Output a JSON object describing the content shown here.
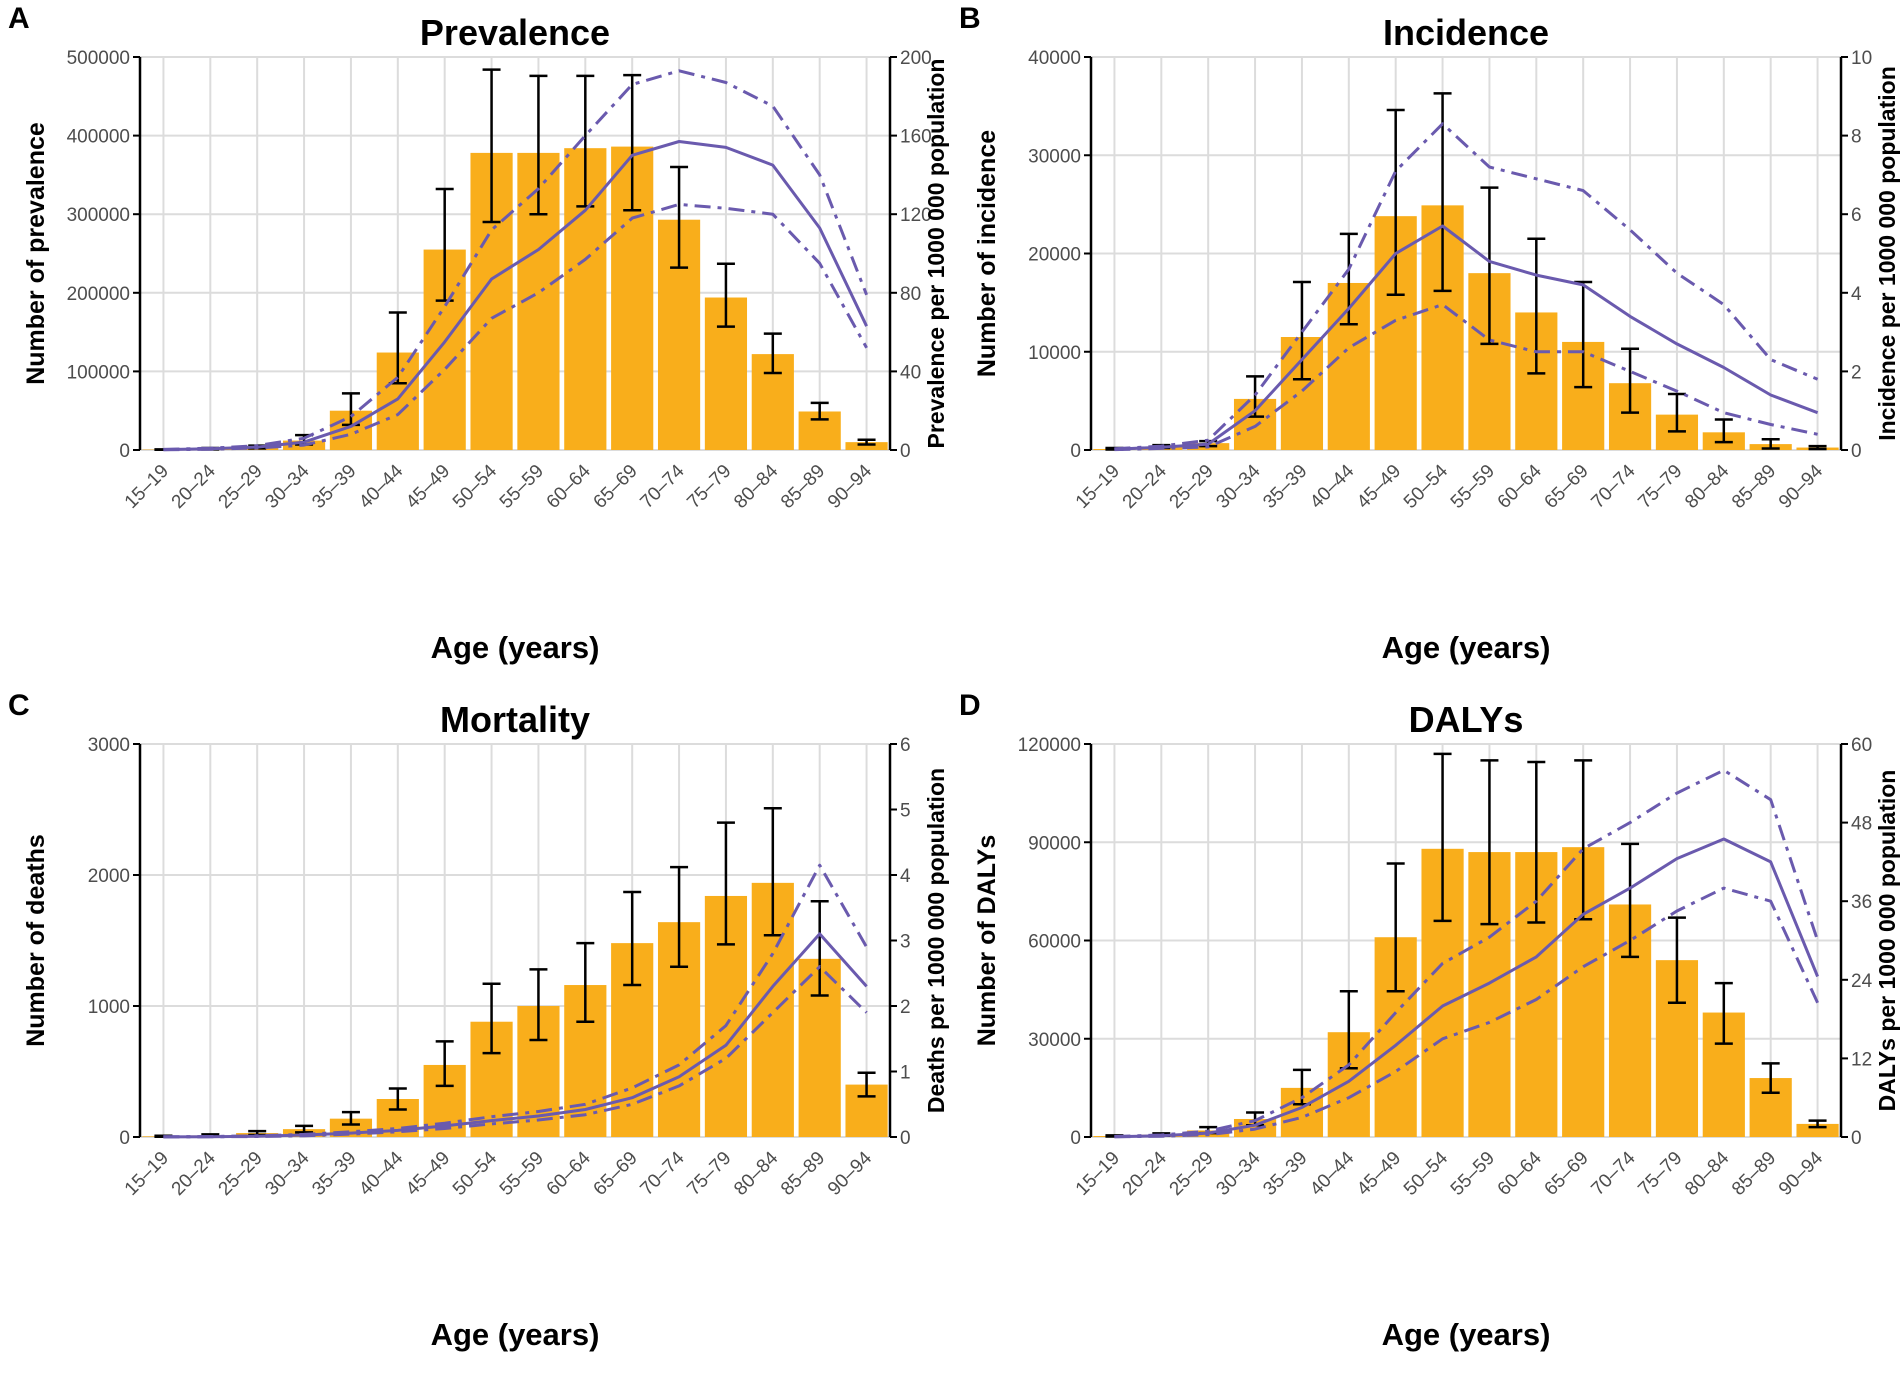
{
  "figure": {
    "colors": {
      "bar": "#F9AE1B",
      "line": "#6A5AAE",
      "grid": "#DCDCDC",
      "axis": "#000000",
      "tick_text": "#4D4D4D"
    },
    "legend_placement": "none"
  },
  "chart_data": [
    {
      "panel_letter": "A",
      "type": "bar",
      "title": "Prevalence",
      "xlabel": "Age (years)",
      "ylabel": "Number of prevalence",
      "y2label": "Prevalence per 1000 000 population",
      "categories": [
        "15–19",
        "20–24",
        "25–29",
        "30–34",
        "35–39",
        "40–44",
        "45–49",
        "50–54",
        "55–59",
        "60–64",
        "65–69",
        "70–74",
        "75–79",
        "80–84",
        "85–89",
        "90–94"
      ],
      "ylim": [
        0,
        500000
      ],
      "yticks": [
        0,
        100000,
        200000,
        300000,
        400000,
        500000
      ],
      "y2lim": [
        0,
        200
      ],
      "y2ticks": [
        0,
        40,
        80,
        120,
        160,
        200
      ],
      "series": [
        {
          "name": "Number of prevalence",
          "axis": "left",
          "kind": "bar",
          "values": [
            500,
            1500,
            3500,
            12000,
            50000,
            124000,
            255000,
            378000,
            378000,
            384000,
            386000,
            293000,
            194000,
            122000,
            49000,
            10000
          ],
          "lower": [
            300,
            800,
            2000,
            7000,
            32000,
            85000,
            190000,
            290000,
            300000,
            310000,
            305000,
            232000,
            157000,
            98000,
            39000,
            7000
          ],
          "upper": [
            800,
            2500,
            5500,
            19000,
            72000,
            175000,
            332000,
            484000,
            476000,
            476000,
            477000,
            360000,
            237000,
            148000,
            60000,
            13000
          ]
        },
        {
          "name": "Prevalence rate",
          "axis": "right",
          "kind": "line",
          "style": "solid",
          "values": [
            0.2,
            0.6,
            1.5,
            4,
            12,
            26,
            55,
            87,
            102,
            122,
            150,
            157,
            154,
            145,
            113,
            63
          ]
        },
        {
          "name": "Prevalence rate upper UI",
          "axis": "right",
          "kind": "line",
          "style": "dashdot",
          "values": [
            0.3,
            0.9,
            2.2,
            6,
            17,
            37,
            73,
            112,
            133,
            160,
            186,
            193,
            187,
            175,
            140,
            79
          ]
        },
        {
          "name": "Prevalence rate lower UI",
          "axis": "right",
          "kind": "line",
          "style": "dashdot",
          "values": [
            0.1,
            0.4,
            1.0,
            2.5,
            8,
            18,
            41,
            67,
            80,
            97,
            118,
            125,
            123,
            120,
            95,
            52
          ]
        }
      ]
    },
    {
      "panel_letter": "B",
      "type": "bar",
      "title": "Incidence",
      "xlabel": "Age (years)",
      "ylabel": "Number of incidence",
      "y2label": "Incidence per 1000 000 population",
      "categories": [
        "15–19",
        "20–24",
        "25–29",
        "30–34",
        "35–39",
        "40–44",
        "45–49",
        "50–54",
        "55–59",
        "60–64",
        "65–69",
        "70–74",
        "75–79",
        "80–84",
        "85–89",
        "90–94"
      ],
      "ylim": [
        0,
        40000
      ],
      "yticks": [
        0,
        10000,
        20000,
        30000,
        40000
      ],
      "y2lim": [
        0,
        10
      ],
      "y2ticks": [
        0,
        2,
        4,
        6,
        8,
        10
      ],
      "series": [
        {
          "name": "Number of incidence",
          "axis": "left",
          "kind": "bar",
          "values": [
            100,
            350,
            700,
            5200,
            11500,
            17000,
            23800,
            24900,
            18000,
            14000,
            11000,
            6800,
            3600,
            1800,
            600,
            250
          ],
          "lower": [
            50,
            200,
            400,
            3400,
            7200,
            12800,
            15800,
            16200,
            10800,
            7800,
            6400,
            3800,
            1900,
            800,
            150,
            100
          ],
          "upper": [
            200,
            500,
            900,
            7500,
            17100,
            22000,
            34600,
            36300,
            26700,
            21500,
            17100,
            10300,
            5700,
            3100,
            1100,
            400
          ]
        },
        {
          "name": "Incidence rate",
          "axis": "right",
          "kind": "line",
          "style": "solid",
          "values": [
            0.02,
            0.07,
            0.15,
            1.0,
            2.3,
            3.6,
            5.0,
            5.7,
            4.8,
            4.45,
            4.2,
            3.4,
            2.7,
            2.1,
            1.4,
            0.95
          ]
        },
        {
          "name": "Incidence rate upper UI",
          "axis": "right",
          "kind": "line",
          "style": "dashdot",
          "values": [
            0.03,
            0.1,
            0.25,
            1.4,
            3.0,
            4.6,
            7.1,
            8.3,
            7.2,
            6.9,
            6.6,
            5.6,
            4.5,
            3.7,
            2.3,
            1.8
          ]
        },
        {
          "name": "Incidence rate lower UI",
          "axis": "right",
          "kind": "line",
          "style": "dashdot",
          "values": [
            0.01,
            0.04,
            0.08,
            0.6,
            1.5,
            2.6,
            3.3,
            3.7,
            2.8,
            2.5,
            2.5,
            2.0,
            1.5,
            0.95,
            0.65,
            0.4
          ]
        }
      ]
    },
    {
      "panel_letter": "C",
      "type": "bar",
      "title": "Mortality",
      "xlabel": "Age (years)",
      "ylabel": "Number of deaths",
      "y2label": "Deaths per 1000 000 population",
      "categories": [
        "15–19",
        "20–24",
        "25–29",
        "30–34",
        "35–39",
        "40–44",
        "45–49",
        "50–54",
        "55–59",
        "60–64",
        "65–69",
        "70–74",
        "75–79",
        "80–84",
        "85–89",
        "90–94"
      ],
      "ylim": [
        0,
        3000
      ],
      "yticks": [
        0,
        1000,
        2000,
        3000
      ],
      "y2lim": [
        0,
        6
      ],
      "y2ticks": [
        0,
        1,
        2,
        3,
        4,
        5,
        6
      ],
      "series": [
        {
          "name": "Number of deaths",
          "axis": "left",
          "kind": "bar",
          "values": [
            5,
            12,
            30,
            60,
            140,
            290,
            550,
            880,
            1000,
            1160,
            1480,
            1640,
            1840,
            1940,
            1360,
            400
          ],
          "lower": [
            2,
            6,
            15,
            35,
            95,
            210,
            390,
            640,
            740,
            880,
            1160,
            1300,
            1470,
            1540,
            1080,
            310
          ],
          "upper": [
            10,
            20,
            45,
            85,
            190,
            370,
            730,
            1170,
            1280,
            1480,
            1870,
            2060,
            2400,
            2510,
            1800,
            490
          ]
        },
        {
          "name": "Death rate",
          "axis": "right",
          "kind": "line",
          "style": "solid",
          "values": [
            0.002,
            0.005,
            0.012,
            0.03,
            0.06,
            0.1,
            0.17,
            0.25,
            0.32,
            0.42,
            0.6,
            0.92,
            1.4,
            2.3,
            3.1,
            2.3
          ]
        },
        {
          "name": "Death rate upper UI",
          "axis": "right",
          "kind": "line",
          "style": "dashdot",
          "values": [
            0.003,
            0.008,
            0.018,
            0.04,
            0.08,
            0.13,
            0.21,
            0.31,
            0.39,
            0.5,
            0.75,
            1.1,
            1.7,
            2.8,
            4.15,
            2.9
          ]
        },
        {
          "name": "Death rate lower UI",
          "axis": "right",
          "kind": "line",
          "style": "dashdot",
          "values": [
            0.001,
            0.003,
            0.008,
            0.02,
            0.045,
            0.08,
            0.13,
            0.2,
            0.26,
            0.34,
            0.5,
            0.78,
            1.2,
            1.9,
            2.6,
            1.9
          ]
        }
      ]
    },
    {
      "panel_letter": "D",
      "type": "bar",
      "title": "DALYs",
      "xlabel": "Age (years)",
      "ylabel": "Number of DALYs",
      "y2label": "DALYs per 1000 000 population",
      "categories": [
        "15–19",
        "20–24",
        "25–29",
        "30–34",
        "35–39",
        "40–44",
        "45–49",
        "50–54",
        "55–59",
        "60–64",
        "65–69",
        "70–74",
        "75–79",
        "80–84",
        "85–89",
        "90–94"
      ],
      "ylim": [
        0,
        120000
      ],
      "yticks": [
        0,
        30000,
        60000,
        90000,
        120000
      ],
      "y2lim": [
        0,
        60
      ],
      "y2ticks": [
        0,
        12,
        24,
        36,
        48,
        60
      ],
      "series": [
        {
          "name": "Number of DALYs",
          "axis": "left",
          "kind": "bar",
          "values": [
            300,
            700,
            2000,
            5500,
            15000,
            32000,
            61000,
            88000,
            87000,
            87000,
            88500,
            71000,
            54000,
            38000,
            18000,
            4000
          ],
          "lower": [
            150,
            400,
            1200,
            3600,
            10000,
            21000,
            44500,
            66000,
            65000,
            65500,
            66500,
            55000,
            41000,
            28500,
            13500,
            3000
          ],
          "upper": [
            500,
            1100,
            3000,
            7500,
            20500,
            44500,
            83500,
            117000,
            115000,
            114500,
            115000,
            89500,
            67000,
            47000,
            22500,
            5000
          ]
        },
        {
          "name": "DALY rate",
          "axis": "right",
          "kind": "line",
          "style": "solid",
          "values": [
            0.05,
            0.2,
            0.6,
            1.8,
            4.5,
            8.5,
            14,
            20,
            23.5,
            27.5,
            34,
            38,
            42.5,
            45.5,
            42,
            24.5
          ]
        },
        {
          "name": "DALY rate upper UI",
          "axis": "right",
          "kind": "line",
          "style": "dashdot",
          "values": [
            0.08,
            0.3,
            0.9,
            2.5,
            6,
            11,
            19,
            26.5,
            30.5,
            36,
            44,
            48,
            52.5,
            56,
            51.5,
            30
          ]
        },
        {
          "name": "DALY rate lower UI",
          "axis": "right",
          "kind": "line",
          "style": "dashdot",
          "values": [
            0.03,
            0.12,
            0.35,
            1.2,
            3,
            6,
            10,
            15,
            17.5,
            21,
            26,
            30,
            34.5,
            38,
            36,
            20.5
          ]
        }
      ]
    }
  ]
}
